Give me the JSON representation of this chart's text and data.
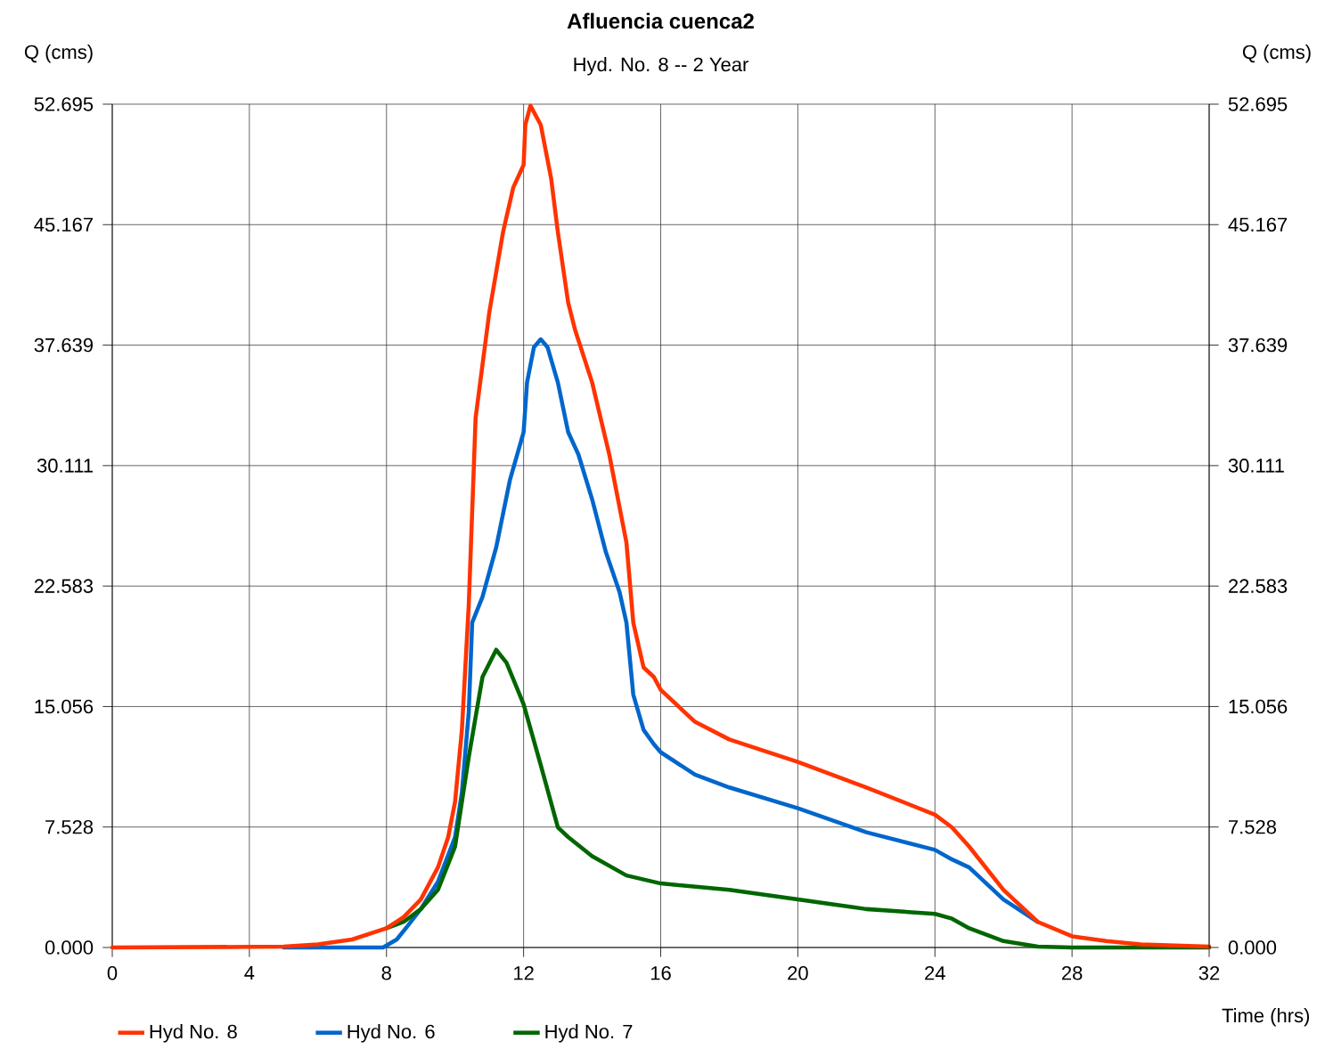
{
  "chart_data": {
    "type": "line",
    "title": "Afluencia cuenca2",
    "subtitle": "Hyd. No. 8 -- 2 Year",
    "xlabel": "Time (hrs)",
    "ylabel": "Q (cms)",
    "y2label": "Q (cms)",
    "xlim": [
      0,
      32
    ],
    "xticks": [
      0,
      4,
      8,
      12,
      16,
      20,
      24,
      28,
      32
    ],
    "ylim": [
      0,
      52.695
    ],
    "yticks": [
      {
        "value": 0,
        "label": "0.000"
      },
      7.528,
      15.056,
      22.583,
      30.111,
      37.639,
      45.167,
      52.695
    ],
    "y2lim": [
      0,
      52.695
    ],
    "y2ticks": [
      {
        "value": 0,
        "label": "0.000"
      },
      7.528,
      15.056,
      22.583,
      30.111,
      37.639,
      45.167,
      52.695
    ],
    "grid": true,
    "legend": "bottom",
    "marker": "none",
    "line_style": "solid",
    "series": [
      {
        "name": "Hyd No. 8",
        "color": "#ff3300",
        "x": [
          0,
          5,
          6,
          7,
          8,
          8.5,
          9,
          9.5,
          9.8,
          10,
          10.2,
          10.4,
          10.6,
          11,
          11.4,
          11.7,
          12,
          12.05,
          12.2,
          12.5,
          12.8,
          13,
          13.3,
          13.5,
          14,
          14.5,
          15,
          15.2,
          15.5,
          15.8,
          16,
          17,
          18,
          20,
          22,
          24,
          24.5,
          25,
          26,
          27,
          28,
          29,
          30,
          32
        ],
        "values": [
          0,
          0.05,
          0.2,
          0.5,
          1.2,
          1.9,
          3.0,
          5.0,
          6.9,
          9.1,
          13.6,
          21.4,
          33.1,
          39.7,
          44.7,
          47.5,
          48.9,
          51.4,
          52.6,
          51.4,
          48.1,
          44.7,
          40.3,
          38.6,
          35.3,
          30.8,
          25.3,
          20.3,
          17.5,
          16.9,
          16.1,
          14.1,
          13.0,
          11.6,
          10.0,
          8.3,
          7.5,
          6.3,
          3.6,
          1.6,
          0.7,
          0.4,
          0.2,
          0.05
        ]
      },
      {
        "name": "Hyd No. 6",
        "color": "#0066cc",
        "x": [
          5,
          7.9,
          8.3,
          8.6,
          9,
          9.5,
          10,
          10.2,
          10.4,
          10.5,
          10.8,
          11.2,
          11.6,
          12,
          12.1,
          12.3,
          12.5,
          12.7,
          13,
          13.3,
          13.6,
          14,
          14.4,
          14.8,
          15,
          15.2,
          15.5,
          15.8,
          16,
          17,
          18,
          20,
          22,
          24,
          24.5,
          25,
          26,
          27
        ],
        "values": [
          0,
          0,
          0.5,
          1.3,
          2.4,
          4.1,
          6.9,
          9.7,
          14.7,
          20.3,
          21.9,
          25.0,
          29.2,
          32.2,
          35.3,
          37.5,
          38.0,
          37.5,
          35.3,
          32.2,
          30.8,
          28.0,
          24.7,
          22.2,
          20.3,
          15.8,
          13.6,
          12.7,
          12.2,
          10.8,
          10.0,
          8.7,
          7.2,
          6.1,
          5.5,
          5.0,
          3.0,
          1.6
        ]
      },
      {
        "name": "Hyd No. 7",
        "color": "#006600",
        "x": [
          8,
          8.5,
          9,
          9.5,
          10,
          10.4,
          10.8,
          11.2,
          11.5,
          12,
          12.5,
          13,
          13.3,
          14,
          15,
          16,
          18,
          20,
          22,
          24,
          24.5,
          25,
          26,
          27,
          28,
          32
        ],
        "values": [
          1.2,
          1.6,
          2.4,
          3.6,
          6.3,
          11.9,
          16.9,
          18.6,
          17.8,
          15.2,
          11.4,
          7.5,
          6.9,
          5.7,
          4.5,
          4.0,
          3.6,
          3.0,
          2.4,
          2.1,
          1.8,
          1.2,
          0.4,
          0.05,
          0,
          0
        ]
      }
    ]
  }
}
